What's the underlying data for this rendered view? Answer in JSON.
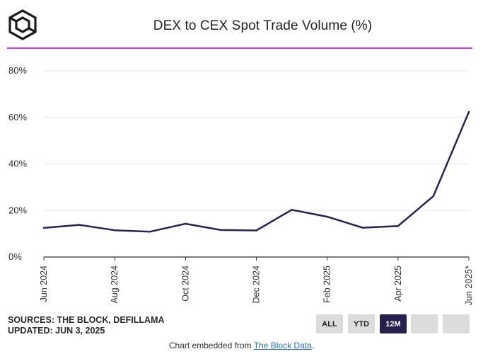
{
  "header": {
    "title": "DEX to CEX Spot Trade Volume (%)"
  },
  "footer": {
    "sources": "SOURCES: THE BLOCK, DEFILLAMA",
    "updated": "UPDATED: JUN 3, 2025",
    "embed_prefix": "Chart embedded from ",
    "embed_link": "The Block Data",
    "embed_suffix": "."
  },
  "range_buttons": [
    {
      "label": "ALL",
      "active": false
    },
    {
      "label": "YTD",
      "active": false
    },
    {
      "label": "12M",
      "active": true
    },
    {
      "label": "",
      "active": false
    },
    {
      "label": "",
      "active": false
    }
  ],
  "colors": {
    "accent_rule": "#c43ff0",
    "line": "#2a2250",
    "active_button": "#271f4e"
  },
  "chart_data": {
    "type": "line",
    "title": "DEX to CEX Spot Trade Volume (%)",
    "xlabel": "",
    "ylabel": "",
    "ylim": [
      0,
      80
    ],
    "yticks": [
      "0%",
      "20%",
      "40%",
      "60%",
      "80%"
    ],
    "xtick_labels": [
      "Jun 2024",
      "Aug 2024",
      "Oct 2024",
      "Dec 2024",
      "Feb 2025",
      "Apr 2025",
      "Jun 2025*"
    ],
    "grid": true,
    "series": [
      {
        "months": [
          "Jun 2024",
          "Jul 2024",
          "Aug 2024",
          "Sep 2024",
          "Oct 2024",
          "Nov 2024",
          "Dec 2024",
          "Jan 2025",
          "Feb 2025",
          "Mar 2025",
          "Apr 2025",
          "May 2025",
          "Jun 2025"
        ],
        "values": [
          12.5,
          13.8,
          11.5,
          10.9,
          14.3,
          11.6,
          11.4,
          20.3,
          17.3,
          12.6,
          13.3,
          26.2,
          62.3
        ]
      }
    ]
  }
}
